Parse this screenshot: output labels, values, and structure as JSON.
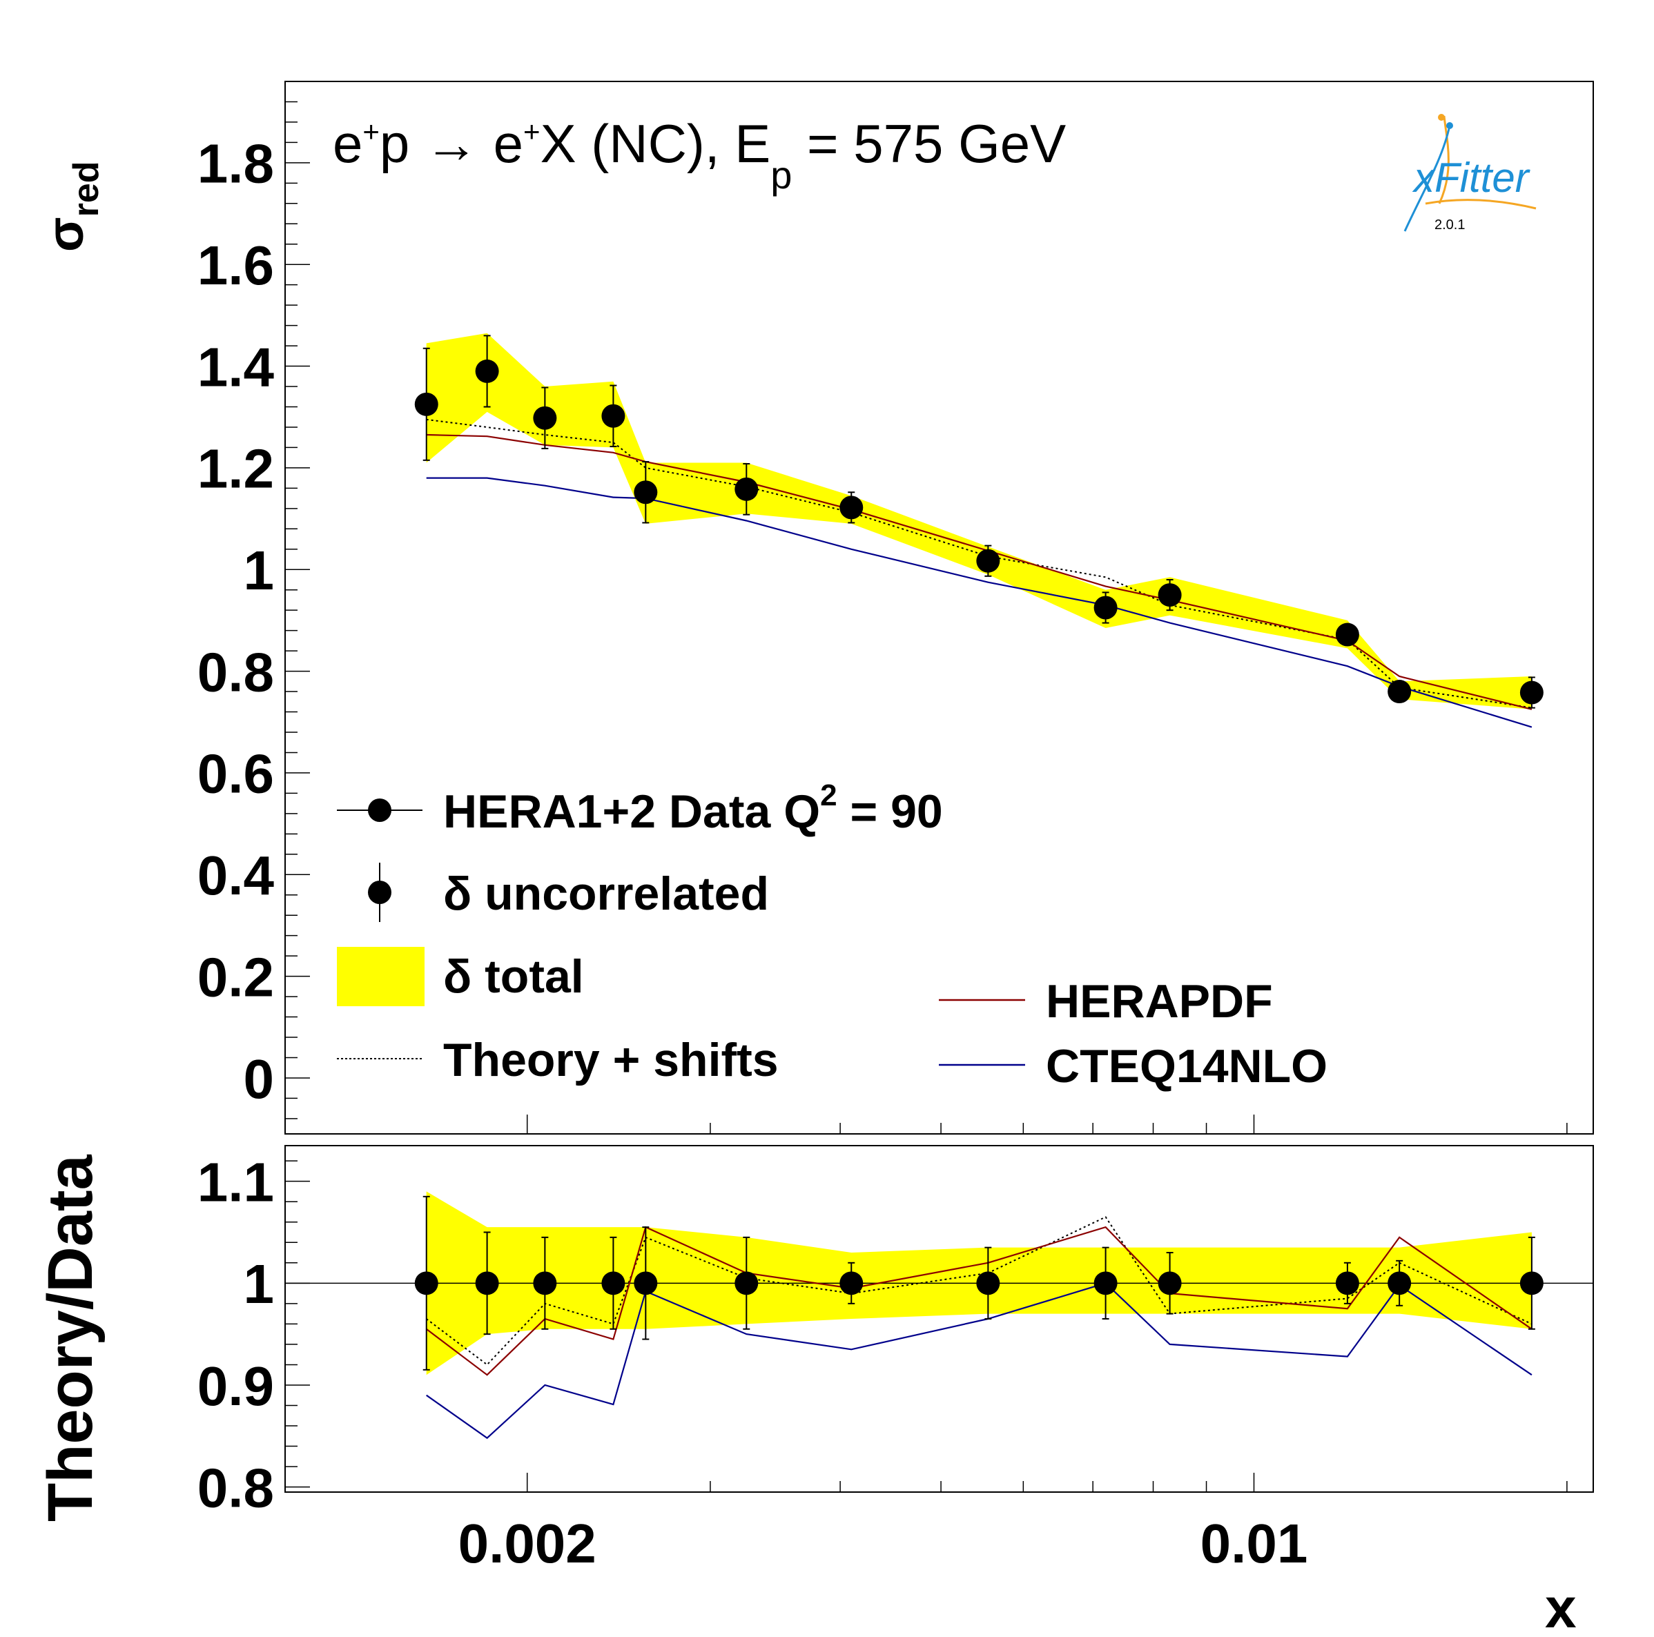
{
  "top_panel": {
    "process_lhs": "e",
    "process_p": "p → e",
    "process_rest": "X (NC), E",
    "process_sub": "p",
    "process_energy": " = 575 GeV",
    "ylabel_main": "σ",
    "ylabel_sub": "red",
    "yticks": [
      "0",
      "0.2",
      "0.4",
      "0.6",
      "0.8",
      "1",
      "1.2",
      "1.4",
      "1.6",
      "1.8"
    ]
  },
  "bottom_panel": {
    "ylabel": "Theory/Data",
    "yticks": [
      "0.8",
      "0.9",
      "1",
      "1.1"
    ],
    "xticks": [
      "0.002",
      "0.01"
    ],
    "xlabel": "x"
  },
  "logo": {
    "name": "xFitter",
    "version": "2.0.1"
  },
  "legend": {
    "data_label": "HERA1+2 Data Q",
    "data_sup": "2",
    "data_q2": " = 90",
    "uncorrelated": "δ uncorrelated",
    "total": "δ total",
    "theory_shifts": "Theory + shifts",
    "herapdf": "HERAPDF",
    "cteq": "CTEQ14NLO"
  },
  "colors": {
    "band": "#ffff00",
    "herapdf": "#8b0000",
    "cteq": "#00008b",
    "data": "#000000"
  },
  "chart_data": {
    "type": "scatter",
    "x_scale": "log",
    "xlim": [
      0.00117,
      0.0212
    ],
    "x": [
      0.0016,
      0.00183,
      0.00208,
      0.00242,
      0.0026,
      0.00325,
      0.0041,
      0.00555,
      0.0072,
      0.0083,
      0.0123,
      0.0138,
      0.0185
    ],
    "top": {
      "ylim": [
        -0.11,
        1.96
      ],
      "sigma_red": [
        1.325,
        1.39,
        1.298,
        1.302,
        1.152,
        1.158,
        1.122,
        1.017,
        0.925,
        0.95,
        0.872,
        0.76,
        0.758
      ],
      "uncorr_err": [
        0.11,
        0.07,
        0.06,
        0.06,
        0.06,
        0.05,
        0.03,
        0.03,
        0.03,
        0.03,
        0.02,
        0.02,
        0.03
      ],
      "band_lo": [
        1.21,
        1.31,
        1.245,
        1.24,
        1.09,
        1.11,
        1.09,
        0.99,
        0.885,
        0.91,
        0.845,
        0.745,
        0.725
      ],
      "band_hi": [
        1.445,
        1.465,
        1.36,
        1.37,
        1.21,
        1.21,
        1.145,
        1.045,
        0.96,
        0.985,
        0.9,
        0.78,
        0.79
      ],
      "series": [
        {
          "name": "Theory + shifts",
          "values": [
            1.295,
            1.28,
            1.265,
            1.25,
            1.2,
            1.163,
            1.112,
            1.026,
            0.985,
            0.93,
            0.862,
            0.768,
            0.728
          ]
        },
        {
          "name": "HERAPDF",
          "values": [
            1.265,
            1.262,
            1.245,
            1.23,
            1.212,
            1.172,
            1.118,
            1.037,
            0.967,
            0.94,
            0.86,
            0.79,
            0.725
          ]
        },
        {
          "name": "CTEQ14NLO",
          "values": [
            1.18,
            1.18,
            1.165,
            1.142,
            1.14,
            1.096,
            1.04,
            0.975,
            0.93,
            0.895,
            0.81,
            0.77,
            0.69
          ]
        }
      ]
    },
    "ratio": {
      "ylim": [
        0.795,
        1.135
      ],
      "data": [
        1,
        1,
        1,
        1,
        1,
        1,
        1,
        1,
        1,
        1,
        1,
        1,
        1
      ],
      "uncorr_err": [
        0.085,
        0.05,
        0.045,
        0.045,
        0.055,
        0.045,
        0.02,
        0.035,
        0.035,
        0.03,
        0.02,
        0.022,
        0.045
      ],
      "band_lo": [
        0.91,
        0.95,
        0.955,
        0.955,
        0.955,
        0.96,
        0.965,
        0.97,
        0.97,
        0.97,
        0.97,
        0.97,
        0.955
      ],
      "band_hi": [
        1.09,
        1.055,
        1.055,
        1.055,
        1.055,
        1.045,
        1.03,
        1.035,
        1.035,
        1.035,
        1.035,
        1.035,
        1.05
      ],
      "series": [
        {
          "name": "Theory + shifts",
          "values": [
            0.965,
            0.92,
            0.98,
            0.96,
            1.045,
            1.005,
            0.99,
            1.01,
            1.065,
            0.97,
            0.985,
            1.02,
            0.96
          ]
        },
        {
          "name": "HERAPDF",
          "values": [
            0.955,
            0.91,
            0.965,
            0.945,
            1.055,
            1.01,
            0.995,
            1.02,
            1.055,
            0.99,
            0.975,
            1.045,
            0.955
          ]
        },
        {
          "name": "CTEQ14NLO",
          "values": [
            0.89,
            0.848,
            0.9,
            0.881,
            0.992,
            0.95,
            0.935,
            0.965,
            1.0,
            0.94,
            0.928,
            0.998,
            0.91
          ]
        }
      ]
    }
  }
}
